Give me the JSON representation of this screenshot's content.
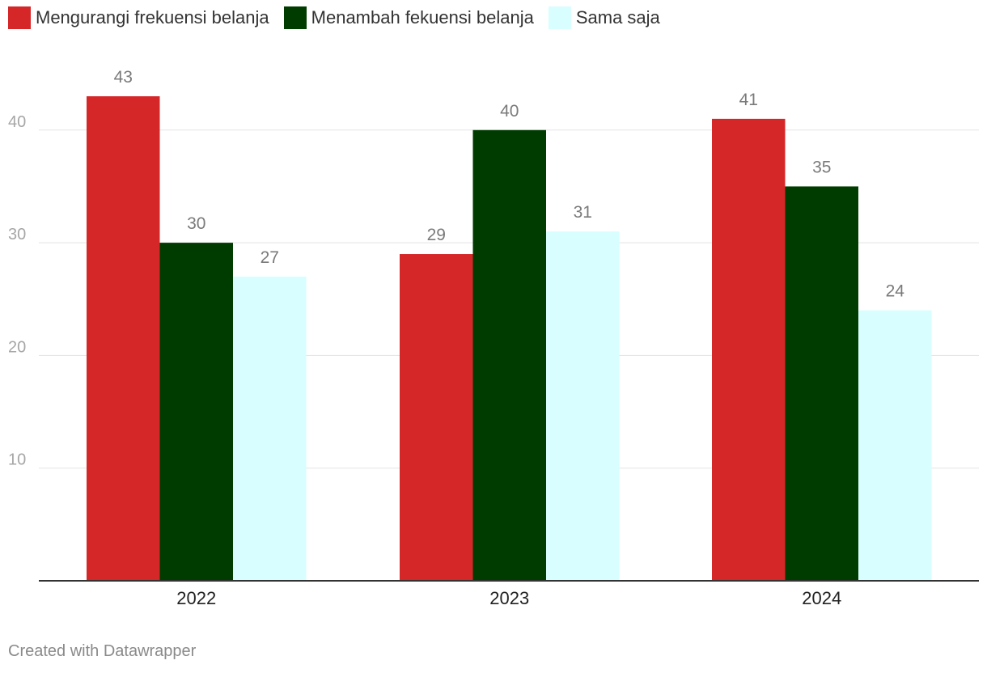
{
  "chart_data": {
    "type": "bar",
    "categories": [
      "2022",
      "2023",
      "2024"
    ],
    "series": [
      {
        "name": "Mengurangi frekuensi belanja",
        "color": "#d62728",
        "values": [
          43,
          29,
          41
        ]
      },
      {
        "name": "Menambah fekuensi belanja",
        "color": "#003c00",
        "values": [
          30,
          40,
          35
        ]
      },
      {
        "name": "Sama saja",
        "color": "#d8feff",
        "values": [
          27,
          31,
          24
        ]
      }
    ],
    "yticks": [
      10,
      20,
      30,
      40
    ],
    "ylim": [
      0,
      43
    ],
    "grid": true,
    "legend_position": "top-left",
    "data_labels": true
  },
  "footer": {
    "credit": "Created with Datawrapper"
  }
}
